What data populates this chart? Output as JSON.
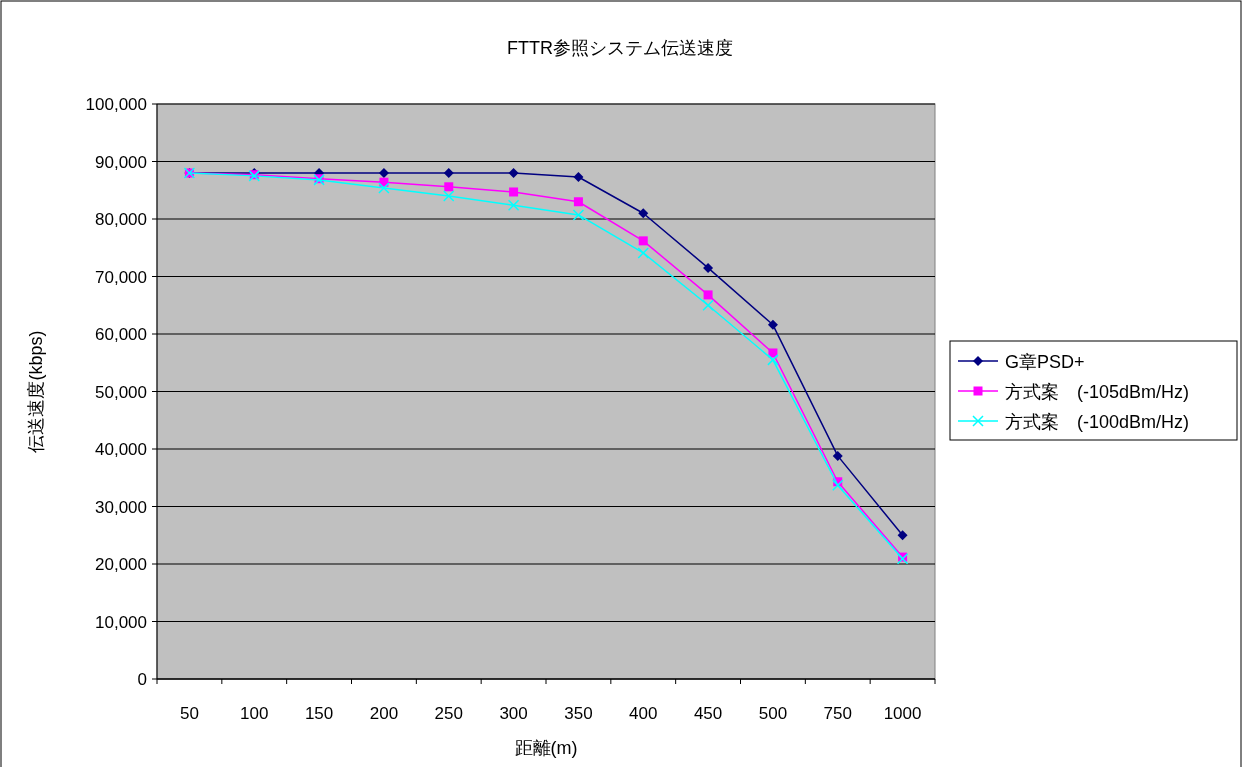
{
  "chart_data": {
    "type": "line",
    "title": "FTTR参照システム伝送速度",
    "xlabel": "距離(m)",
    "ylabel": "伝送速度(kbps)",
    "categories": [
      "50",
      "100",
      "150",
      "200",
      "250",
      "300",
      "350",
      "400",
      "450",
      "500",
      "750",
      "1000"
    ],
    "series": [
      {
        "name": "G章PSD+",
        "color": "#000080",
        "marker": "diamond",
        "values": [
          88000,
          88000,
          88000,
          88000,
          88000,
          88000,
          87300,
          81000,
          71500,
          61600,
          38800,
          25000
        ]
      },
      {
        "name": "方式案　(-105dBm/Hz)",
        "color": "#ff00ff",
        "marker": "square",
        "values": [
          88000,
          87700,
          87000,
          86400,
          85600,
          84700,
          83000,
          76200,
          66800,
          56700,
          34300,
          21200
        ]
      },
      {
        "name": "方式案　(-100dBm/Hz)",
        "color": "#00ffff",
        "marker": "cross",
        "values": [
          88000,
          87500,
          86800,
          85400,
          84000,
          82400,
          80700,
          74100,
          65000,
          55500,
          33700,
          20900
        ]
      }
    ],
    "ylim": [
      0,
      100000
    ],
    "yticks": [
      {
        "value": 0,
        "label": "0"
      },
      {
        "value": 10000,
        "label": "10,000"
      },
      {
        "value": 20000,
        "label": "20,000"
      },
      {
        "value": 30000,
        "label": "30,000"
      },
      {
        "value": 40000,
        "label": "40,000"
      },
      {
        "value": 50000,
        "label": "50,000"
      },
      {
        "value": 60000,
        "label": "60,000"
      },
      {
        "value": 70000,
        "label": "70,000"
      },
      {
        "value": 80000,
        "label": "80,000"
      },
      {
        "value": 90000,
        "label": "90,000"
      },
      {
        "value": 100000,
        "label": "100,000"
      }
    ],
    "grid": "y",
    "legend": "right",
    "line_style": "solid"
  }
}
